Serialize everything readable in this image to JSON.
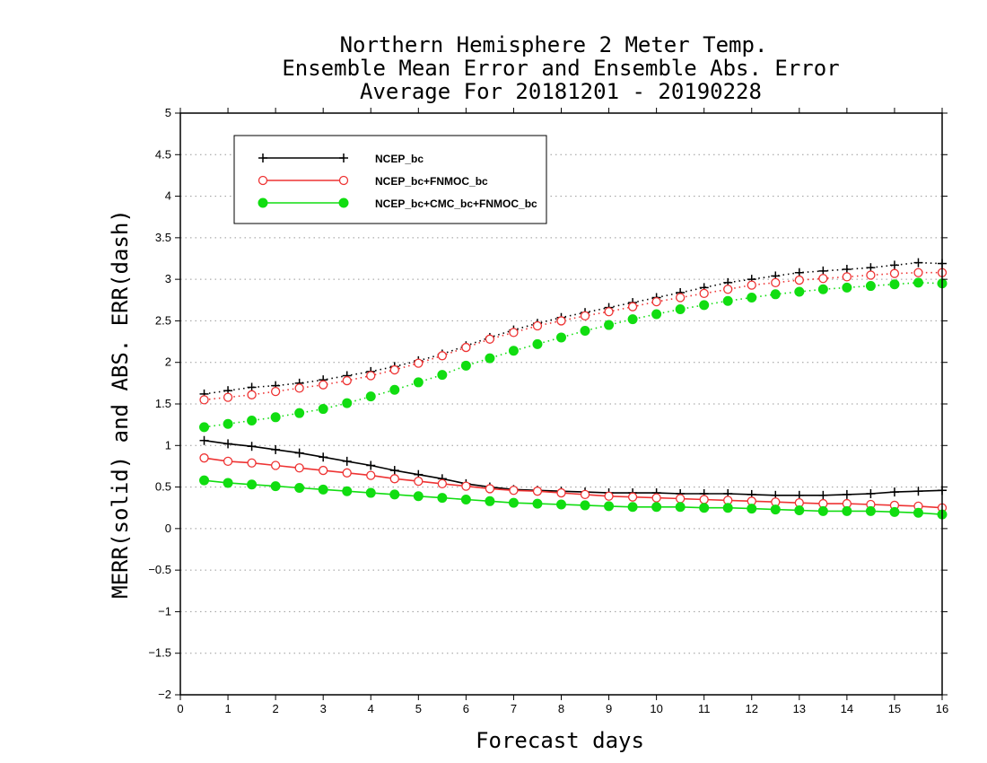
{
  "chart_data": {
    "type": "line",
    "title_lines": [
      "Northern Hemisphere 2 Meter Temp.",
      "Ensemble Mean Error and Ensemble Abs. Error",
      "Average For 20181201 - 20190228"
    ],
    "xlabel": "Forecast days",
    "ylabel": "MERR(solid) and ABS. ERR(dash)",
    "xlim": [
      0,
      16
    ],
    "ylim": [
      -2,
      5
    ],
    "x_ticks": [
      0,
      1,
      2,
      3,
      4,
      5,
      6,
      7,
      8,
      9,
      10,
      11,
      12,
      13,
      14,
      15,
      16
    ],
    "y_ticks": [
      -2,
      -1.5,
      -1,
      -0.5,
      0,
      0.5,
      1,
      1.5,
      2,
      2.5,
      3,
      3.5,
      4,
      4.5,
      5
    ],
    "y_tick_labels": [
      "−2",
      "−1.5",
      "−1",
      "−0.5",
      "0",
      "0.5",
      "1",
      "1.5",
      "2",
      "2.5",
      "3",
      "3.5",
      "4",
      "4.5",
      "5"
    ],
    "grid": "horizontal dotted",
    "legend_position": "top-left",
    "x": [
      0.5,
      1,
      1.5,
      2,
      2.5,
      3,
      3.5,
      4,
      4.5,
      5,
      5.5,
      6,
      6.5,
      7,
      7.5,
      8,
      8.5,
      9,
      9.5,
      10,
      10.5,
      11,
      11.5,
      12,
      12.5,
      13,
      13.5,
      14,
      14.5,
      15,
      15.5,
      16
    ],
    "series": [
      {
        "name": "NCEP_bc",
        "color": "#000000",
        "marker": "plus",
        "mean_error": [
          1.06,
          1.02,
          0.99,
          0.95,
          0.91,
          0.86,
          0.81,
          0.76,
          0.7,
          0.65,
          0.6,
          0.54,
          0.5,
          0.47,
          0.46,
          0.45,
          0.44,
          0.43,
          0.43,
          0.43,
          0.42,
          0.42,
          0.42,
          0.41,
          0.4,
          0.4,
          0.4,
          0.41,
          0.42,
          0.44,
          0.45,
          0.46
        ],
        "abs_error": [
          1.62,
          1.66,
          1.7,
          1.72,
          1.75,
          1.79,
          1.84,
          1.89,
          1.95,
          2.02,
          2.1,
          2.2,
          2.3,
          2.39,
          2.47,
          2.54,
          2.6,
          2.66,
          2.72,
          2.78,
          2.84,
          2.9,
          2.96,
          3.0,
          3.04,
          3.08,
          3.1,
          3.12,
          3.14,
          3.17,
          3.2,
          3.19
        ]
      },
      {
        "name": "NCEP_bc+FNMOC_bc",
        "color": "#ee3333",
        "marker": "open-circle",
        "mean_error": [
          0.85,
          0.81,
          0.79,
          0.76,
          0.73,
          0.7,
          0.67,
          0.64,
          0.6,
          0.57,
          0.54,
          0.51,
          0.48,
          0.46,
          0.45,
          0.43,
          0.41,
          0.39,
          0.38,
          0.37,
          0.36,
          0.35,
          0.34,
          0.33,
          0.32,
          0.31,
          0.3,
          0.3,
          0.29,
          0.28,
          0.27,
          0.25
        ],
        "abs_error": [
          1.55,
          1.58,
          1.61,
          1.65,
          1.69,
          1.73,
          1.78,
          1.84,
          1.91,
          1.99,
          2.08,
          2.18,
          2.28,
          2.36,
          2.44,
          2.5,
          2.56,
          2.61,
          2.67,
          2.73,
          2.78,
          2.83,
          2.88,
          2.93,
          2.96,
          2.99,
          3.01,
          3.03,
          3.05,
          3.07,
          3.08,
          3.08
        ]
      },
      {
        "name": "NCEP_bc+CMC_bc+FNMOC_bc",
        "color": "#11dd11",
        "marker": "filled-circle",
        "mean_error": [
          0.58,
          0.55,
          0.53,
          0.51,
          0.49,
          0.47,
          0.45,
          0.43,
          0.41,
          0.39,
          0.37,
          0.35,
          0.33,
          0.31,
          0.3,
          0.29,
          0.28,
          0.27,
          0.26,
          0.26,
          0.26,
          0.25,
          0.25,
          0.24,
          0.23,
          0.22,
          0.21,
          0.21,
          0.21,
          0.2,
          0.19,
          0.17
        ],
        "abs_error": [
          1.22,
          1.26,
          1.3,
          1.34,
          1.39,
          1.44,
          1.51,
          1.59,
          1.67,
          1.76,
          1.85,
          1.96,
          2.05,
          2.14,
          2.22,
          2.3,
          2.38,
          2.45,
          2.52,
          2.58,
          2.64,
          2.69,
          2.74,
          2.78,
          2.82,
          2.85,
          2.88,
          2.9,
          2.92,
          2.94,
          2.96,
          2.95
        ]
      }
    ]
  }
}
